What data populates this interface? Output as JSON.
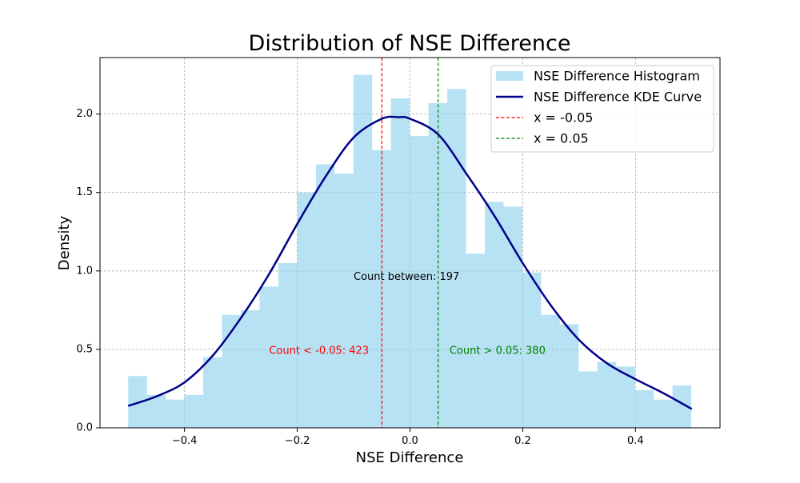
{
  "chart_data": {
    "type": "bar",
    "title": "Distribution of NSE Difference",
    "xlabel": "NSE Difference",
    "ylabel": "Density",
    "xlim": [
      -0.55,
      0.55
    ],
    "ylim": [
      0,
      2.36
    ],
    "grid": true,
    "legend_position": "top-right",
    "x_ticks": [
      -0.4,
      -0.2,
      0.0,
      0.2,
      0.4
    ],
    "x_tick_labels": [
      "−0.4",
      "−0.2",
      "0.0",
      "0.2",
      "0.4"
    ],
    "y_ticks": [
      0.0,
      0.5,
      1.0,
      1.5,
      2.0
    ],
    "y_tick_labels": [
      "0.0",
      "0.5",
      "1.0",
      "1.5",
      "2.0"
    ],
    "histogram": {
      "name": "NSE Difference Histogram",
      "color": "#87ceeb",
      "bin_width": 0.0333,
      "bin_edges_start": -0.5,
      "values": [
        0.33,
        0.21,
        0.18,
        0.21,
        0.45,
        0.72,
        0.75,
        0.9,
        1.05,
        1.5,
        1.68,
        1.62,
        2.25,
        1.77,
        2.1,
        1.86,
        2.07,
        2.16,
        1.11,
        1.44,
        1.41,
        0.99,
        0.72,
        0.66,
        0.36,
        0.42,
        0.39,
        0.24,
        0.18,
        0.27
      ]
    },
    "kde": {
      "name": "NSE Difference KDE Curve",
      "color": "#00008b",
      "x": [
        -0.5,
        -0.45,
        -0.4,
        -0.35,
        -0.3,
        -0.25,
        -0.2,
        -0.15,
        -0.1,
        -0.05,
        -0.02,
        0.0,
        0.05,
        0.1,
        0.15,
        0.2,
        0.25,
        0.3,
        0.35,
        0.4,
        0.45,
        0.5
      ],
      "y": [
        0.14,
        0.2,
        0.29,
        0.46,
        0.7,
        0.98,
        1.3,
        1.6,
        1.85,
        1.97,
        1.98,
        1.97,
        1.87,
        1.62,
        1.35,
        1.05,
        0.78,
        0.56,
        0.41,
        0.31,
        0.22,
        0.12
      ]
    },
    "vlines": [
      {
        "name": "x = -0.05",
        "x": -0.05,
        "color": "#ff0000"
      },
      {
        "name": "x = 0.05",
        "x": 0.05,
        "color": "#008000"
      }
    ],
    "annotations": [
      {
        "text": "Count < -0.05: 423",
        "x": -0.25,
        "y": 0.49,
        "color": "#ff0000"
      },
      {
        "text": "Count between: 197",
        "x": -0.1,
        "y": 0.96,
        "color": "#000000"
      },
      {
        "text": "Count > 0.05: 380",
        "x": 0.07,
        "y": 0.49,
        "color": "#008000"
      }
    ]
  }
}
